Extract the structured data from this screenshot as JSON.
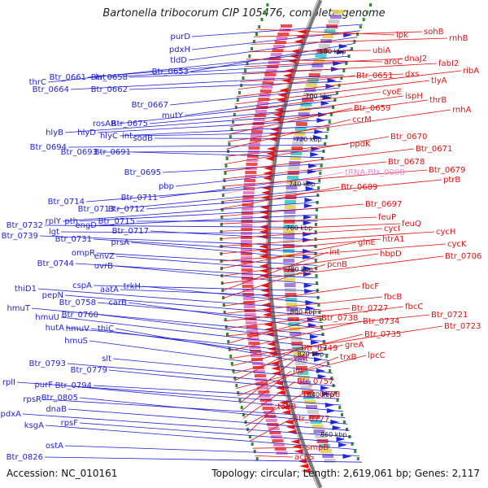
{
  "title": "Bartonella tribocorum CIP 105476, complete genome",
  "accession": "Accession: NC_010161",
  "summary": "Topology: circular; Length: 2,619,061 bp; Genes: 2,117",
  "colors": {
    "left_labels": "#1f1fd6",
    "right_labels": "#e01010",
    "trna_label": "#e58ad8",
    "axis": "#888888",
    "tick_dots": "#2e8b2e"
  },
  "kbp_ticks": [
    "680 kbp",
    "700 kbp",
    "720 kbp",
    "740 kbp",
    "760 kbp",
    "780 kbp",
    "800 kbp",
    "820 kbp",
    "840 kbp",
    "860 kbp"
  ],
  "left_genes": [
    "purD",
    "pdxH",
    "tldD",
    "Btr_0653",
    "thrC",
    "Btr_0661",
    "int",
    "Btr_0658",
    "Btr_0664",
    "Btr_0662",
    "Btr_0667",
    "mutY",
    "rosAR",
    "Btr_0675",
    "hlyB",
    "hlyD",
    "hlyC",
    "int",
    "sodB",
    "Btr_0694",
    "Btr_0693",
    "Btr_0691",
    "Btr_0695",
    "pbp",
    "Btr_0711",
    "Btr_0714",
    "Btr_0713",
    "Btr_0712",
    "rplY",
    "pth",
    "engD",
    "Btr_0715",
    "Btr_0732",
    "lgt",
    "Btr_0717",
    "Btr_0739",
    "Btr_0731",
    "prsA",
    "ompR",
    "envZ",
    "Btr_0744",
    "uvrB",
    "cspA",
    "aatA",
    "trkH",
    "thiD1",
    "pepN",
    "Btr_0758",
    "carB",
    "hmuT",
    "Btr_0760",
    "hmuU",
    "hutA",
    "hmuV",
    "thiC",
    "hmuS",
    "slt",
    "Btr_0793",
    "Btr_0779",
    "Btr_0794",
    "rplI",
    "purF",
    "rpsR",
    "Btr_0805",
    "dnaB",
    "pdxA",
    "rpsF",
    "ksgA",
    "ostA",
    "Btr_0826"
  ],
  "right_genes": [
    "ipk",
    "sohB",
    "rnhB",
    "ubiA",
    "aroC",
    "dnaJ2",
    "fabI2",
    "dxs",
    "Btr_0651",
    "ribA",
    "tlyA",
    "cyoE",
    "ispH",
    "thrB",
    "Btr_0659",
    "rnhA",
    "ccrM",
    "ppdK",
    "Btr_0670",
    "Btr_0671",
    "Btr_0678",
    "Btr_0679",
    "tRNA-Btr_0008",
    "ptrB",
    "Btr_0689",
    "Btr_0697",
    "feuP",
    "feuQ",
    "cycI",
    "cycH",
    "htrA1",
    "cycK",
    "glnE",
    "hbpD",
    "Btr_0706",
    "int",
    "pcnB",
    "fbcF",
    "fbcB",
    "Btr_0727",
    "fbcC",
    "Btr_0721",
    "Btr_0738",
    "Btr_0734",
    "Btr_0723",
    "Btr_0735",
    "greA",
    "Btr_0749",
    "lpcC",
    "trxB",
    "int",
    "int",
    "Btr_0757",
    "Btr_0768",
    "tonB",
    "Btr_0777",
    "smpB",
    "acpS"
  ]
}
